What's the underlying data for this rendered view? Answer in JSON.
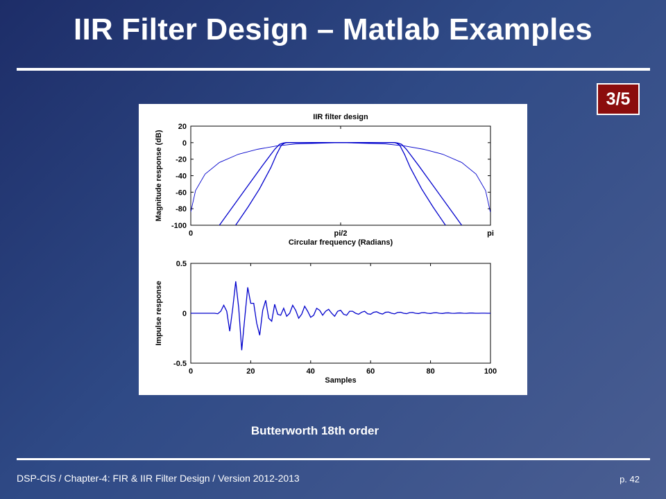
{
  "slide": {
    "title": "IIR Filter Design – Matlab Examples",
    "page_badge": "3/5",
    "caption": "Butterworth 18th order",
    "footer_left": "DSP-CIS  /  Chapter-4: FIR & IIR Filter Design  /  Version 2012-2013",
    "footer_right": "p. 42"
  },
  "colors": {
    "series": "#0000cc",
    "badge": "#8b0d0d"
  },
  "chart_data": [
    {
      "type": "line",
      "title": "IIR filter design",
      "xlabel": "Circular frequency (Radians)",
      "ylabel": "Magnitude response (dB)",
      "xlim": [
        0,
        3.1416
      ],
      "ylim": [
        -100,
        20
      ],
      "x_ticks": [
        0,
        1.5708,
        3.1416
      ],
      "x_tick_labels": [
        "0",
        "pi/2",
        "pi"
      ],
      "y_ticks": [
        20,
        0,
        -20,
        -40,
        -60,
        -80,
        -100
      ],
      "y_tick_labels": [
        "20",
        "0",
        "-20",
        "-40",
        "-60",
        "-80",
        "-100"
      ],
      "grid": false,
      "series": [
        {
          "x": [
            0.0,
            0.05,
            0.15,
            0.3,
            0.5,
            0.7,
            0.9,
            1.1,
            1.57,
            2.04,
            2.24,
            2.44,
            2.64,
            2.84,
            2.99,
            3.09,
            3.14
          ],
          "values": [
            -84,
            -58,
            -38,
            -24,
            -14,
            -8,
            -4,
            -1.5,
            0,
            -1.5,
            -4,
            -8,
            -14,
            -24,
            -38,
            -58,
            -84
          ]
        },
        {
          "x": [
            0.3,
            0.45,
            0.6,
            0.75,
            0.88,
            0.93,
            0.97,
            1.0,
            1.57,
            2.14,
            2.17,
            2.21,
            2.26,
            2.39,
            2.54,
            2.69,
            2.84
          ],
          "values": [
            -100,
            -76,
            -52,
            -28,
            -8,
            -2,
            -0.5,
            0,
            0,
            0,
            -0.5,
            -2,
            -8,
            -28,
            -52,
            -76,
            -100
          ]
        },
        {
          "x": [
            0.47,
            0.6,
            0.72,
            0.84,
            0.9,
            0.95,
            0.98,
            1.0,
            1.57,
            2.14,
            2.16,
            2.19,
            2.24,
            2.3,
            2.42,
            2.54,
            2.67
          ],
          "values": [
            -100,
            -78,
            -56,
            -30,
            -14,
            -3,
            -0.8,
            0,
            0,
            0,
            -0.8,
            -3,
            -14,
            -30,
            -56,
            -78,
            -100
          ]
        }
      ]
    },
    {
      "type": "line",
      "title": "",
      "xlabel": "Samples",
      "ylabel": "Impulse response",
      "xlim": [
        0,
        100
      ],
      "ylim": [
        -0.5,
        0.5
      ],
      "x_ticks": [
        0,
        20,
        40,
        60,
        80,
        100
      ],
      "x_tick_labels": [
        "0",
        "20",
        "40",
        "60",
        "80",
        "100"
      ],
      "y_ticks": [
        0.5,
        0,
        -0.5
      ],
      "y_tick_labels": [
        "0.5",
        "0",
        "-0.5"
      ],
      "grid": false,
      "series": [
        {
          "x": [
            0,
            1,
            2,
            3,
            4,
            5,
            6,
            7,
            8,
            9,
            10,
            11,
            12,
            13,
            14,
            15,
            16,
            17,
            18,
            19,
            20,
            21,
            22,
            23,
            24,
            25,
            26,
            27,
            28,
            29,
            30,
            31,
            32,
            33,
            34,
            35,
            36,
            37,
            38,
            39,
            40,
            41,
            42,
            43,
            44,
            45,
            46,
            47,
            48,
            49,
            50,
            51,
            52,
            53,
            54,
            55,
            56,
            57,
            58,
            59,
            60,
            61,
            62,
            63,
            64,
            65,
            66,
            67,
            68,
            69,
            70,
            71,
            72,
            73,
            74,
            75,
            76,
            77,
            78,
            79,
            80,
            81,
            82,
            83,
            84,
            85,
            86,
            87,
            88,
            89,
            90,
            91,
            92,
            93,
            94,
            95,
            96,
            97,
            98,
            99,
            100
          ],
          "values": [
            0,
            0,
            0,
            0,
            0,
            0,
            0,
            0,
            0,
            -0.005,
            0.02,
            0.08,
            0.02,
            -0.18,
            0.05,
            0.32,
            0.05,
            -0.37,
            -0.05,
            0.26,
            0.1,
            0.1,
            -0.1,
            -0.22,
            0.03,
            0.13,
            -0.05,
            -0.08,
            0.09,
            -0.01,
            -0.02,
            0.05,
            -0.03,
            0.0,
            0.08,
            0.03,
            -0.05,
            -0.01,
            0.07,
            0.02,
            -0.04,
            -0.02,
            0.05,
            0.03,
            -0.02,
            0.02,
            0.04,
            0.0,
            -0.03,
            0.02,
            0.03,
            -0.01,
            -0.02,
            0.02,
            0.02,
            0.0,
            -0.01,
            0.01,
            0.02,
            -0.005,
            -0.01,
            0.01,
            0.015,
            0.0,
            -0.008,
            0.01,
            0.012,
            0.0,
            -0.006,
            0.008,
            0.01,
            0.0,
            -0.004,
            0.006,
            0.008,
            0.0,
            -0.003,
            0.005,
            0.006,
            0.0,
            -0.002,
            0.004,
            0.005,
            0.0,
            -0.002,
            0.003,
            0.004,
            0.0,
            -0.001,
            0.002,
            0.003,
            0.0,
            -0.001,
            0.002,
            0.002,
            0.0,
            0.0,
            0.001,
            0.001,
            0.0,
            0.0
          ]
        }
      ]
    }
  ]
}
